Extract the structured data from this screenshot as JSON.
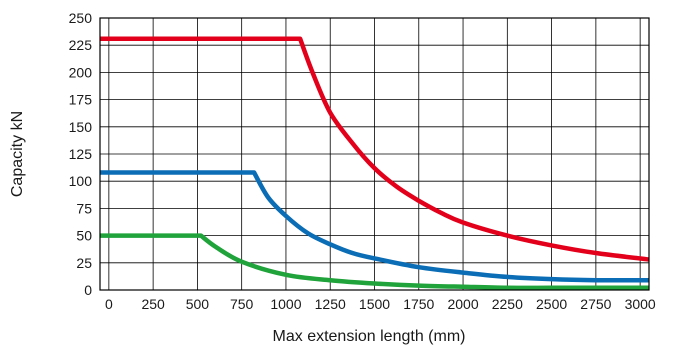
{
  "chart_data": {
    "type": "line",
    "xlabel": "Max extension length (mm)",
    "ylabel": "Capacity kN",
    "xlim": [
      -50,
      3050
    ],
    "ylim": [
      0,
      250
    ],
    "x_ticks": [
      "0",
      "250",
      "500",
      "750",
      "1000",
      "1250",
      "1500",
      "1750",
      "2000",
      "2250",
      "2500",
      "2750",
      "3000"
    ],
    "y_ticks": [
      "0",
      "25",
      "50",
      "75",
      "100",
      "125",
      "150",
      "175",
      "200",
      "225",
      "250"
    ],
    "grid": true,
    "series": [
      {
        "color": "#e3001b",
        "x": [
          -50,
          1080,
          1150,
          1250,
          1375,
          1500,
          1625,
          1750,
          1875,
          2000,
          2250,
          2500,
          2750,
          3050
        ],
        "y": [
          231,
          231,
          200,
          163,
          135,
          112,
          95,
          82,
          71,
          62,
          50,
          41,
          34,
          28
        ]
      },
      {
        "color": "#0a6db5",
        "x": [
          -50,
          820,
          900,
          1000,
          1125,
          1250,
          1375,
          1500,
          1750,
          2000,
          2250,
          2500,
          2750,
          3050
        ],
        "y": [
          108,
          108,
          85,
          68,
          52,
          42,
          34,
          29,
          21,
          16,
          12,
          10,
          9,
          9
        ]
      },
      {
        "color": "#1fa33a",
        "x": [
          -50,
          520,
          600,
          750,
          1000,
          1250,
          1500,
          1750,
          2000,
          2250,
          2500,
          2750,
          3050
        ],
        "y": [
          50,
          50,
          40,
          26,
          14,
          9,
          6,
          4,
          3,
          2,
          2,
          2,
          2
        ]
      }
    ]
  }
}
